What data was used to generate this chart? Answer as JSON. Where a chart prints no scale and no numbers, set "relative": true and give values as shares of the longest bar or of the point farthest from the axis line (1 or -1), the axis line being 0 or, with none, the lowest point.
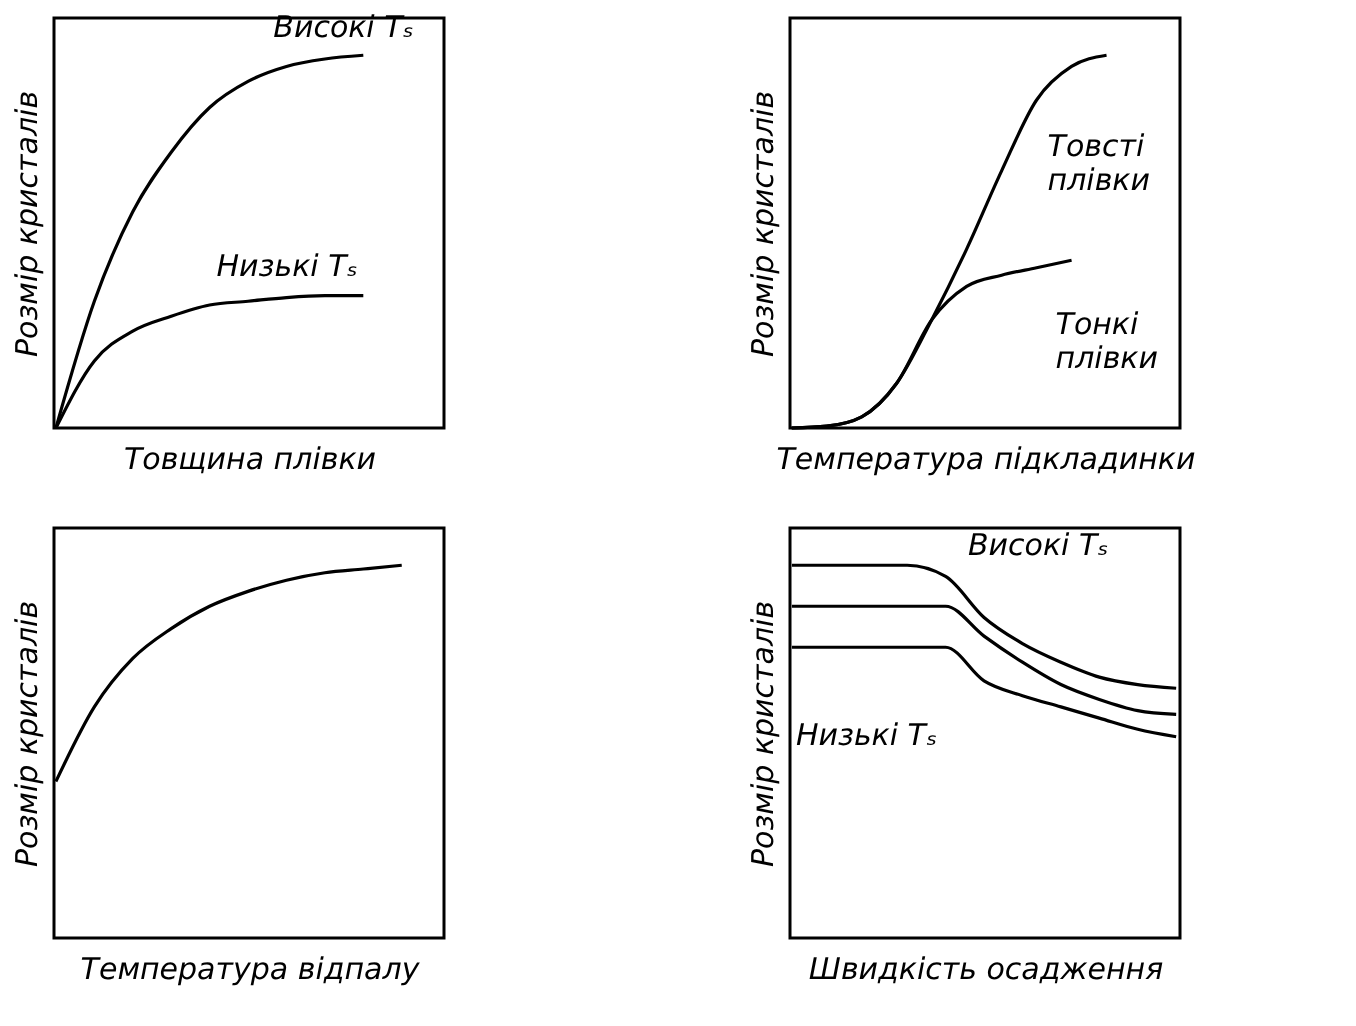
{
  "chart_data": [
    {
      "type": "line",
      "relative": true,
      "xlabel": "Товщина плівки",
      "ylabel": "Розмір кристалів",
      "tick_labels": false,
      "grid": false,
      "categories": [
        null,
        null,
        null,
        null,
        null,
        null,
        null,
        null,
        null,
        null,
        null
      ],
      "series": [
        {
          "name": "Високі Tₛ",
          "color": "#000000",
          "values": [
            0,
            0.34,
            0.58,
            0.74,
            0.86,
            0.93,
            0.97,
            0.99,
            1,
            null,
            null
          ]
        },
        {
          "name": "Низькі Tₛ",
          "color": "#000000",
          "values": [
            0,
            0.18,
            0.26,
            0.3,
            0.33,
            0.34,
            0.35,
            0.355,
            0.355,
            null,
            null
          ]
        }
      ]
    },
    {
      "type": "line",
      "relative": true,
      "xlabel": "Температура підкладинки",
      "ylabel": "Розмір кристалів",
      "tick_labels": false,
      "grid": false,
      "categories": [
        null,
        null,
        null,
        null,
        null,
        null,
        null,
        null,
        null,
        null,
        null,
        null
      ],
      "series": [
        {
          "name": "Товсті\nплівки",
          "color": "#000000",
          "values": [
            0,
            0.005,
            0.03,
            0.12,
            0.29,
            0.48,
            0.69,
            0.88,
            0.97,
            1,
            null,
            null
          ]
        },
        {
          "name": "Тонкі\nплівки",
          "color": "#000000",
          "values": [
            0,
            0.005,
            0.03,
            0.12,
            0.29,
            0.38,
            0.41,
            0.43,
            0.45,
            null,
            null,
            null
          ]
        }
      ]
    },
    {
      "type": "line",
      "relative": true,
      "xlabel": "Температура відпалу",
      "ylabel": "Розмір кристалів",
      "tick_labels": false,
      "grid": false,
      "categories": [
        null,
        null,
        null,
        null,
        null,
        null,
        null,
        null,
        null,
        null,
        null
      ],
      "series": [
        {
          "color": "#000000",
          "values": [
            0.42,
            0.62,
            0.75,
            0.83,
            0.89,
            0.93,
            0.96,
            0.98,
            0.99,
            1,
            null
          ]
        }
      ]
    },
    {
      "type": "line",
      "relative": true,
      "xlabel": "Швидкість осадження",
      "ylabel": "Розмір кристалів",
      "tick_labels": false,
      "grid": false,
      "categories": [
        null,
        null,
        null,
        null,
        null,
        null,
        null,
        null,
        null,
        null,
        null
      ],
      "series": [
        {
          "name": "Високі Tₛ",
          "color": "#000000",
          "values": [
            1,
            1,
            1,
            1,
            0.97,
            0.86,
            0.79,
            0.74,
            0.7,
            0.68,
            0.67
          ]
        },
        {
          "color": "#000000",
          "values": [
            0.89,
            0.89,
            0.89,
            0.89,
            0.89,
            0.81,
            0.74,
            0.68,
            0.64,
            0.61,
            0.6
          ]
        },
        {
          "name": "Низькі Tₛ",
          "color": "#000000",
          "values": [
            0.78,
            0.78,
            0.78,
            0.78,
            0.78,
            0.69,
            0.65,
            0.62,
            0.59,
            0.56,
            0.54
          ]
        }
      ]
    }
  ]
}
